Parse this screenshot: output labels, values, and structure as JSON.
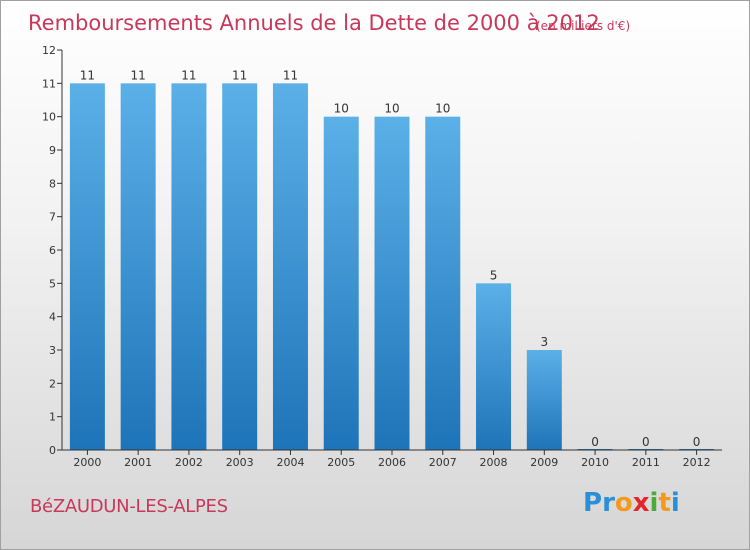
{
  "chart_data": {
    "type": "bar",
    "title": "Remboursements Annuels de la Dette de 2000 à 2012",
    "subtitle": "(en milliers d'€)",
    "xlabel": "",
    "ylabel": "",
    "categories": [
      "2000",
      "2001",
      "2002",
      "2003",
      "2004",
      "2005",
      "2006",
      "2007",
      "2008",
      "2009",
      "2010",
      "2011",
      "2012"
    ],
    "values": [
      11,
      11,
      11,
      11,
      11,
      10,
      10,
      10,
      5,
      3,
      0,
      0,
      0
    ],
    "data_labels": [
      "11",
      "11",
      "11",
      "11",
      "11",
      "10",
      "10",
      "10",
      "5",
      "3",
      "0",
      "0",
      "0"
    ],
    "ylim": [
      0,
      12
    ],
    "y_ticks": [
      0,
      1,
      2,
      3,
      4,
      5,
      6,
      7,
      8,
      9,
      10,
      11,
      12
    ],
    "grid": false,
    "legend": "none",
    "colors": {
      "bar_light": "#5cb0e8",
      "bar_dark": "#1e74b8",
      "title": "#c8385a",
      "axis": "#333333"
    }
  },
  "footer": {
    "commune": "BéZAUDUN-LES-ALPES",
    "brand_letters": [
      "P",
      "r",
      "o",
      "x",
      "i",
      "t",
      "i"
    ],
    "brand_colors": [
      "#2a8fd6",
      "#2a8fd6",
      "#f39a1e",
      "#e3262b",
      "#4aaa3a",
      "#f39a1e",
      "#2a8fd6"
    ]
  }
}
